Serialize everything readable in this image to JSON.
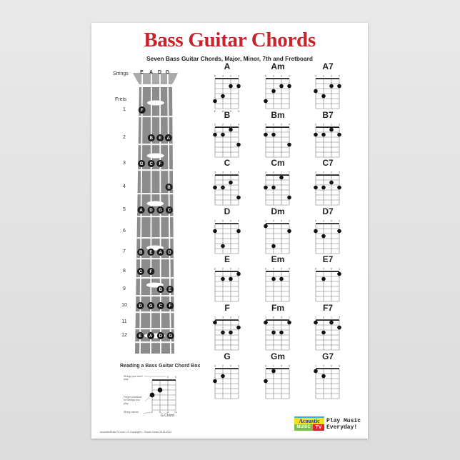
{
  "poster": {
    "title": "Bass Guitar Chords",
    "subtitle": "Seven Bass Guitar Chords, Major, Minor, 7th and Fretboard",
    "title_color": "#c8232c"
  },
  "fretboard": {
    "strings_label": "Strings",
    "strings": [
      "E",
      "A",
      "D",
      "G"
    ],
    "frets_label": "Frets",
    "frets": [
      {
        "number": "1",
        "notes": [
          "F",
          "",
          "",
          ""
        ]
      },
      {
        "number": "2",
        "notes": [
          "",
          "B",
          "E",
          "A"
        ]
      },
      {
        "number": "3",
        "notes": [
          "G",
          "C",
          "F",
          ""
        ]
      },
      {
        "number": "4",
        "notes": [
          "",
          "",
          "",
          "B"
        ]
      },
      {
        "number": "5",
        "notes": [
          "A",
          "D",
          "G",
          "C"
        ]
      },
      {
        "number": "6",
        "notes": [
          "",
          "",
          "",
          ""
        ]
      },
      {
        "number": "7",
        "notes": [
          "B",
          "E",
          "A",
          "D"
        ]
      },
      {
        "number": "8",
        "notes": [
          "C",
          "F",
          "",
          ""
        ]
      },
      {
        "number": "9",
        "notes": [
          "",
          "",
          "B",
          "E"
        ]
      },
      {
        "number": "10",
        "notes": [
          "D",
          "G",
          "C",
          "F"
        ]
      },
      {
        "number": "11",
        "notes": [
          "",
          "",
          "",
          ""
        ]
      },
      {
        "number": "12",
        "notes": [
          "E",
          "A",
          "D",
          "G"
        ]
      }
    ]
  },
  "chords": [
    [
      {
        "name": "A",
        "frets": [
          5,
          4,
          2,
          2
        ]
      },
      {
        "name": "Am",
        "frets": [
          5,
          3,
          2,
          2
        ]
      },
      {
        "name": "A7",
        "frets": [
          3,
          4,
          2,
          2
        ]
      }
    ],
    [
      {
        "name": "B",
        "frets": [
          2,
          2,
          1,
          4
        ]
      },
      {
        "name": "Bm",
        "frets": [
          2,
          2,
          0,
          4
        ]
      },
      {
        "name": "B7",
        "frets": [
          2,
          2,
          1,
          2
        ]
      }
    ],
    [
      {
        "name": "C",
        "frets": [
          3,
          3,
          2,
          5
        ]
      },
      {
        "name": "Cm",
        "frets": [
          3,
          3,
          1,
          5
        ]
      },
      {
        "name": "C7",
        "frets": [
          3,
          3,
          2,
          3
        ]
      }
    ],
    [
      {
        "name": "D",
        "frets": [
          2,
          5,
          0,
          2
        ]
      },
      {
        "name": "Dm",
        "frets": [
          1,
          5,
          0,
          2
        ]
      },
      {
        "name": "D7",
        "frets": [
          2,
          3,
          0,
          2
        ]
      }
    ],
    [
      {
        "name": "E",
        "frets": [
          0,
          2,
          2,
          1
        ]
      },
      {
        "name": "Em",
        "frets": [
          0,
          2,
          2,
          0
        ]
      },
      {
        "name": "E7",
        "frets": [
          0,
          2,
          0,
          1
        ]
      }
    ],
    [
      {
        "name": "F",
        "frets": [
          1,
          3,
          3,
          2
        ]
      },
      {
        "name": "Fm",
        "frets": [
          1,
          3,
          3,
          1
        ]
      },
      {
        "name": "F7",
        "frets": [
          1,
          3,
          1,
          2
        ]
      }
    ],
    [
      {
        "name": "G",
        "frets": [
          3,
          2,
          0,
          0
        ]
      },
      {
        "name": "Gm",
        "frets": [
          3,
          1,
          0,
          0
        ]
      },
      {
        "name": "G7",
        "frets": [
          1,
          2,
          0,
          0
        ]
      }
    ]
  ],
  "legend": {
    "title": "Reading a Bass Guitar Chord Box",
    "strings_dont_play": "Strings you don't play",
    "muted_marks": [
      "X",
      "X"
    ],
    "finger_positions": "Finger positions for strings you play",
    "string_names": "String names",
    "string_letters": [
      "E",
      "A",
      "D",
      "G"
    ],
    "chord_caption": "G Chord"
  },
  "footer": {
    "text": "AcousticMusicTV.com  •  © Copyright L. Bruce Jones 2015-2021"
  },
  "logo": {
    "word1": "Acoustic",
    "word2": "MUSIC",
    "word3": "TV",
    "tagline_1": "Play Music",
    "tagline_2": "Everyday!"
  }
}
